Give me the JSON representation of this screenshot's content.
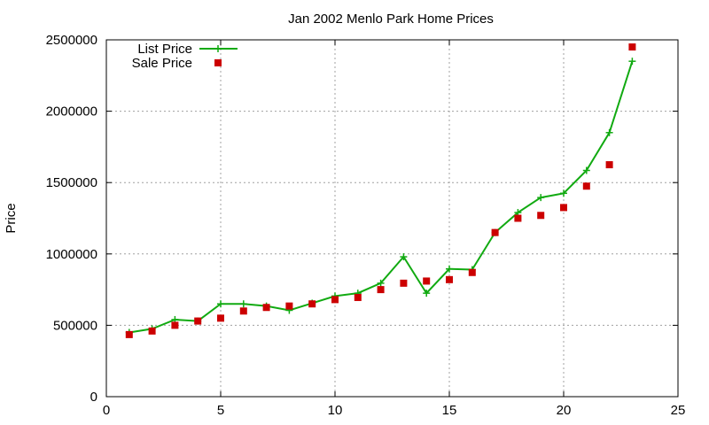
{
  "chart_data": {
    "type": "line",
    "title": "Jan 2002 Menlo Park Home Prices",
    "xlabel": "",
    "ylabel": "Price",
    "xlim": [
      0,
      25
    ],
    "ylim": [
      0,
      2500000
    ],
    "x_ticks": [
      0,
      5,
      10,
      15,
      20,
      25
    ],
    "y_ticks": [
      0,
      500000,
      1000000,
      1500000,
      2000000,
      2500000
    ],
    "grid": true,
    "legend_position": "top-left",
    "series": [
      {
        "name": "List Price",
        "style": "lines+markers",
        "marker": "plus",
        "color": "#11aa11",
        "x": [
          1,
          2,
          3,
          4,
          5,
          6,
          7,
          8,
          9,
          10,
          11,
          12,
          13,
          14,
          15,
          16,
          17,
          18,
          19,
          20,
          21,
          22,
          23
        ],
        "values": [
          450000,
          475000,
          540000,
          530000,
          650000,
          650000,
          635000,
          605000,
          655000,
          705000,
          725000,
          795000,
          980000,
          725000,
          895000,
          890000,
          1150000,
          1290000,
          1395000,
          1425000,
          1585000,
          1850000,
          2350000
        ]
      },
      {
        "name": "Sale Price",
        "style": "markers",
        "marker": "square",
        "color": "#cc0000",
        "x": [
          1,
          2,
          3,
          4,
          5,
          6,
          7,
          8,
          9,
          10,
          11,
          12,
          13,
          14,
          15,
          16,
          17,
          18,
          19,
          20,
          21,
          22,
          23
        ],
        "values": [
          435000,
          460000,
          500000,
          530000,
          550000,
          600000,
          625000,
          635000,
          650000,
          680000,
          695000,
          750000,
          795000,
          810000,
          820000,
          870000,
          1150000,
          1250000,
          1270000,
          1325000,
          1475000,
          1625000,
          2450000
        ]
      }
    ]
  }
}
